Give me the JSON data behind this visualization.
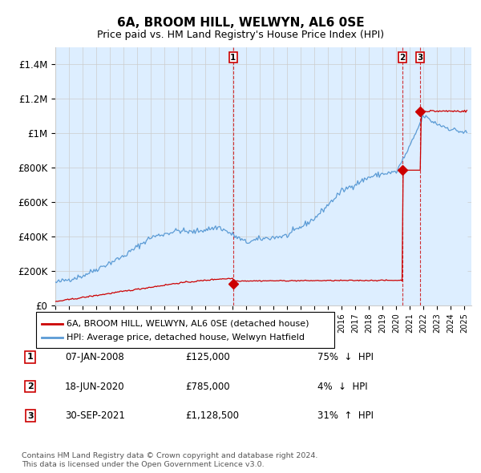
{
  "title": "6A, BROOM HILL, WELWYN, AL6 0SE",
  "subtitle": "Price paid vs. HM Land Registry's House Price Index (HPI)",
  "ylabel_ticks": [
    "£0",
    "£200K",
    "£400K",
    "£600K",
    "£800K",
    "£1M",
    "£1.2M",
    "£1.4M"
  ],
  "ylim": [
    0,
    1500000
  ],
  "yticks": [
    0,
    200000,
    400000,
    600000,
    800000,
    1000000,
    1200000,
    1400000
  ],
  "hpi_color": "#5b9bd5",
  "hpi_fill_color": "#ddeeff",
  "price_color": "#cc0000",
  "marker_color": "#cc0000",
  "legend_entries": [
    "6A, BROOM HILL, WELWYN, AL6 0SE (detached house)",
    "HPI: Average price, detached house, Welwyn Hatfield"
  ],
  "transactions": [
    {
      "num": 1,
      "date": "07-JAN-2008",
      "price": 125000,
      "pct": "75%",
      "dir": "↓",
      "year": 2008.04
    },
    {
      "num": 2,
      "date": "18-JUN-2020",
      "price": 785000,
      "pct": "4%",
      "dir": "↓",
      "year": 2020.46
    },
    {
      "num": 3,
      "date": "30-SEP-2021",
      "price": 1128500,
      "pct": "31%",
      "dir": "↑",
      "year": 2021.75
    }
  ],
  "footer_line1": "Contains HM Land Registry data © Crown copyright and database right 2024.",
  "footer_line2": "This data is licensed under the Open Government Licence v3.0.",
  "background_color": "#ffffff",
  "grid_color": "#cccccc",
  "xlim_start": 1995,
  "xlim_end": 2025.5
}
